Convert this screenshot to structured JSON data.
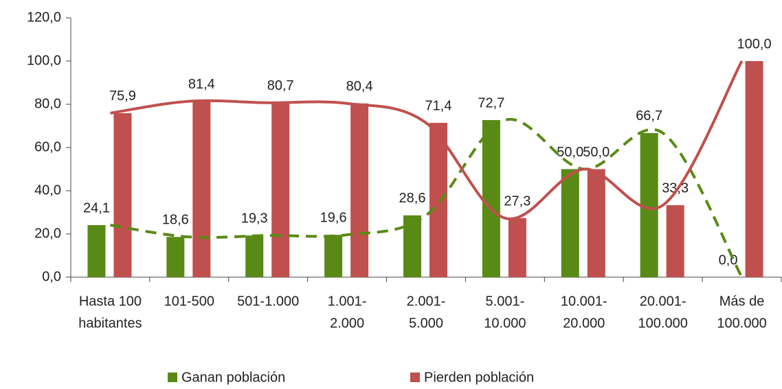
{
  "chart_data": {
    "type": "bar",
    "categories": [
      [
        "Hasta 100",
        "habitantes"
      ],
      [
        "101-500"
      ],
      [
        "501-1.000"
      ],
      [
        "1.001-",
        "2.000"
      ],
      [
        "2.001-",
        "5.000"
      ],
      [
        "5.001-",
        "10.000"
      ],
      [
        "10.001-",
        "20.000"
      ],
      [
        "20.001-",
        "100.000"
      ],
      [
        "Más de",
        "100.000"
      ]
    ],
    "series": [
      {
        "name": "Ganan población",
        "color": "#5a8a16",
        "values": [
          24.1,
          18.6,
          19.3,
          19.6,
          28.6,
          72.7,
          50.0,
          66.7,
          0.0
        ],
        "value_labels": [
          "24,1",
          "18,6",
          "19,3",
          "19,6",
          "28,6",
          "72,7",
          "50,0",
          "66,7",
          "0,0"
        ]
      },
      {
        "name": "Pierden población",
        "color": "#c0504d",
        "values": [
          75.9,
          81.4,
          80.7,
          80.4,
          71.4,
          27.3,
          50.0,
          33.3,
          100.0
        ],
        "value_labels": [
          "75,9",
          "81,4",
          "80,7",
          "80,4",
          "71,4",
          "27,3",
          "50,0",
          "33,3",
          "100,0"
        ]
      }
    ],
    "ylim": [
      0,
      120
    ],
    "yticks": [
      {
        "value": 0,
        "label": "0,0"
      },
      {
        "value": 20,
        "label": "20,0"
      },
      {
        "value": 40,
        "label": "40,0"
      },
      {
        "value": 60,
        "label": "60,0"
      },
      {
        "value": 80,
        "label": "80,0"
      },
      {
        "value": 100,
        "label": "100,0"
      },
      {
        "value": 120,
        "label": "120,0"
      }
    ],
    "legend": "bottom"
  }
}
